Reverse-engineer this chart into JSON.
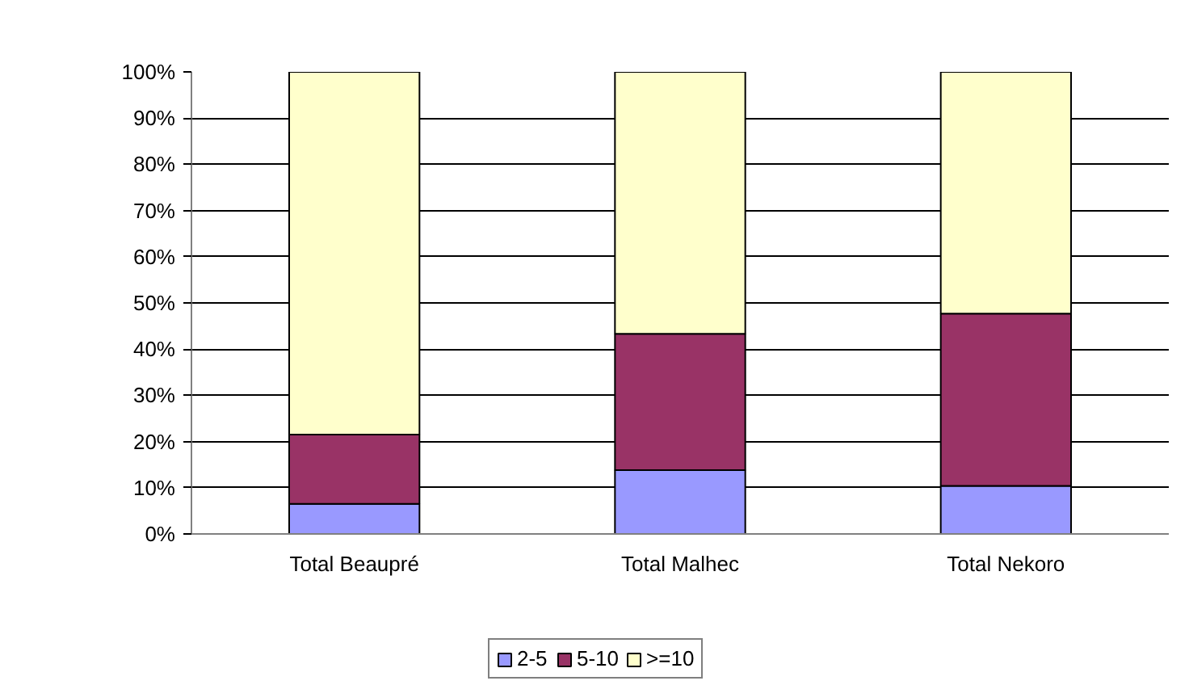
{
  "chart_data": {
    "type": "bar",
    "stacked": true,
    "categories": [
      "Total Beaupré",
      "Total Malhec",
      "Total Nekoro"
    ],
    "series": [
      {
        "name": "2-5",
        "color": "#9999ff",
        "values": [
          6.5,
          13.8,
          10.4
        ]
      },
      {
        "name": "5-10",
        "color": "#993366",
        "values": [
          15,
          29.5,
          37.3
        ]
      },
      {
        "name": ">=10",
        "color": "#ffffcc",
        "values": [
          78.5,
          56.7,
          52.3
        ]
      }
    ],
    "ylim": [
      0,
      100
    ],
    "yticks": [
      {
        "value": 0,
        "label": "0%"
      },
      {
        "value": 10,
        "label": "10%"
      },
      {
        "value": 20,
        "label": "20%"
      },
      {
        "value": 30,
        "label": "30%"
      },
      {
        "value": 40,
        "label": "40%"
      },
      {
        "value": 50,
        "label": "50%"
      },
      {
        "value": 60,
        "label": "60%"
      },
      {
        "value": 70,
        "label": "70%"
      },
      {
        "value": 80,
        "label": "80%"
      },
      {
        "value": 90,
        "label": "90%"
      },
      {
        "value": 100,
        "label": "100%"
      }
    ],
    "grid": "y",
    "legend": "bottom"
  }
}
